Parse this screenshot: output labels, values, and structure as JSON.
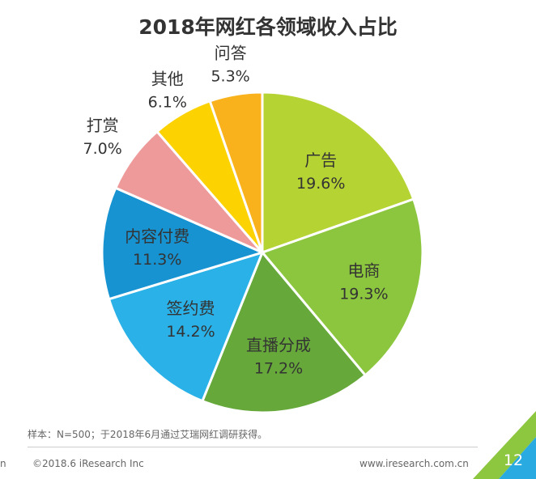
{
  "chart_data": {
    "type": "pie",
    "title": "2018年网红各领域收入占比",
    "unit": "%",
    "slices": [
      {
        "label": "广告",
        "value": 19.6,
        "value_label": "19.6%",
        "color": "#b6d334"
      },
      {
        "label": "电商",
        "value": 19.3,
        "value_label": "19.3%",
        "color": "#8cc63e"
      },
      {
        "label": "直播分成",
        "value": 17.2,
        "value_label": "17.2%",
        "color": "#66a83a"
      },
      {
        "label": "签约费",
        "value": 14.2,
        "value_label": "14.2%",
        "color": "#2ab1e8"
      },
      {
        "label": "内容付费",
        "value": 11.3,
        "value_label": "11.3%",
        "color": "#1793d1"
      },
      {
        "label": "打赏",
        "value": 7.0,
        "value_label": "7.0%",
        "color": "#ef9a9a"
      },
      {
        "label": "其他",
        "value": 6.1,
        "value_label": "6.1%",
        "color": "#fcd200"
      },
      {
        "label": "问答",
        "value": 5.3,
        "value_label": "5.3%",
        "color": "#f9b21c"
      }
    ],
    "label_placement": "inside-and-outside"
  },
  "footer": {
    "note": "样本：N=500；于2018年6月通过艾瑞网红调研获得。",
    "copyright": "©2018.6 iResearch Inc",
    "website": "www.iresearch.com.cn",
    "page_number": "12",
    "left_edge_text": "n"
  },
  "colors": {
    "corner_green": "#8dc63f",
    "corner_teal": "#29abe2"
  }
}
